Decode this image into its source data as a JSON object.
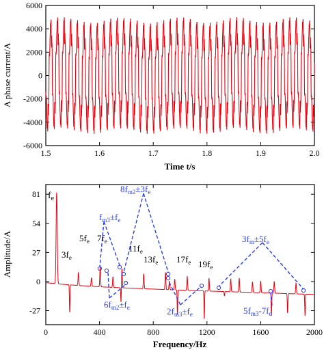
{
  "chart_data": [
    {
      "type": "line",
      "xlabel": "Time t/s",
      "ylabel": "A phase current/A",
      "xlim": [
        1.5,
        2.0
      ],
      "ylim": [
        -6000,
        6000
      ],
      "xticks": [
        "1.5",
        "1.6",
        "1.7",
        "1.8",
        "1.9",
        "2.0"
      ],
      "yticks": [
        "6000",
        "4000",
        "2000",
        "0",
        "-2000",
        "-4000",
        "-6000"
      ],
      "grid": false,
      "color": "#e8000d",
      "series": [
        {
          "fundamental_hz": 81,
          "amplitude": 4300,
          "peak_max": 5000,
          "peak_min": -5000
        }
      ]
    },
    {
      "type": "line",
      "xlabel": "Frequency/Hz",
      "ylabel": "Amplitude/A",
      "xlim": [
        0,
        2000
      ],
      "ylim": [
        -40,
        90
      ],
      "xticks": [
        "0",
        "400",
        "800",
        "1200",
        "1600",
        "2000"
      ],
      "yticks": [
        "81",
        "54",
        "27",
        "0",
        "-27"
      ],
      "grid": false,
      "color": "#e8000d",
      "annotation_color": "#2a3cff",
      "peaks": [
        {
          "label": "fe",
          "x": 81,
          "y": 81
        },
        {
          "label": "3fe",
          "x": 243,
          "y": 8
        },
        {
          "label": "5fe",
          "x": 405,
          "y": 15
        },
        {
          "label": "7fe",
          "x": 567,
          "y": 14
        },
        {
          "label": "11fe",
          "x": 891,
          "y": 12
        },
        {
          "label": "13fe",
          "x": 1053,
          "y": 9
        },
        {
          "label": "17fe",
          "x": 1377,
          "y": 8
        },
        {
          "label": "19fe",
          "x": 1539,
          "y": 6
        }
      ],
      "annotations": [
        {
          "lines": [
            "fm3±fe"
          ]
        },
        {
          "lines": [
            "8fm2±3fe"
          ]
        },
        {
          "lines": [
            "3fm±5fe"
          ]
        },
        {
          "lines": [
            "6fm2±fe"
          ]
        },
        {
          "lines": [
            "2fm3±fe"
          ]
        },
        {
          "lines": [
            "5fm3-7fe"
          ]
        }
      ]
    }
  ],
  "labels": {
    "top_ylabel": "A phase current/A",
    "top_xlabel": "Time t/s",
    "bottom_ylabel": "Amplitude/A",
    "bottom_xlabel": "Frequency/Hz",
    "fe": "f",
    "fe_sub": "e",
    "p3": "3f",
    "p5": "5f",
    "p7": "7f",
    "p11": "11f",
    "p13": "13f",
    "p17": "17f",
    "p19": "19f",
    "a_fm3_pre": "f",
    "a_fm3_sub": "m3",
    "a_fm3_mid": "±f",
    "a_fm3_sub2": "e",
    "a_8fm2_pre": "8f",
    "a_8fm2_sub": "m2",
    "a_8fm2_mid": "±3f",
    "a_8fm2_sub2": "e",
    "a_3fm_pre": "3f",
    "a_3fm_sub": "m",
    "a_3fm_mid": "±5f",
    "a_3fm_sub2": "e",
    "a_6fm2_pre": "6f",
    "a_6fm2_sub": "m2",
    "a_6fm2_mid": "±f",
    "a_6fm2_sub2": "e",
    "a_2fm3_pre": "2f",
    "a_2fm3_sub": "m3",
    "a_2fm3_mid": "±f",
    "a_2fm3_sub2": "e",
    "a_5fm3_pre": "5f",
    "a_5fm3_sub": "m3",
    "a_5fm3_mid": "-7f",
    "a_5fm3_sub2": "e",
    "sub_e": "e"
  }
}
